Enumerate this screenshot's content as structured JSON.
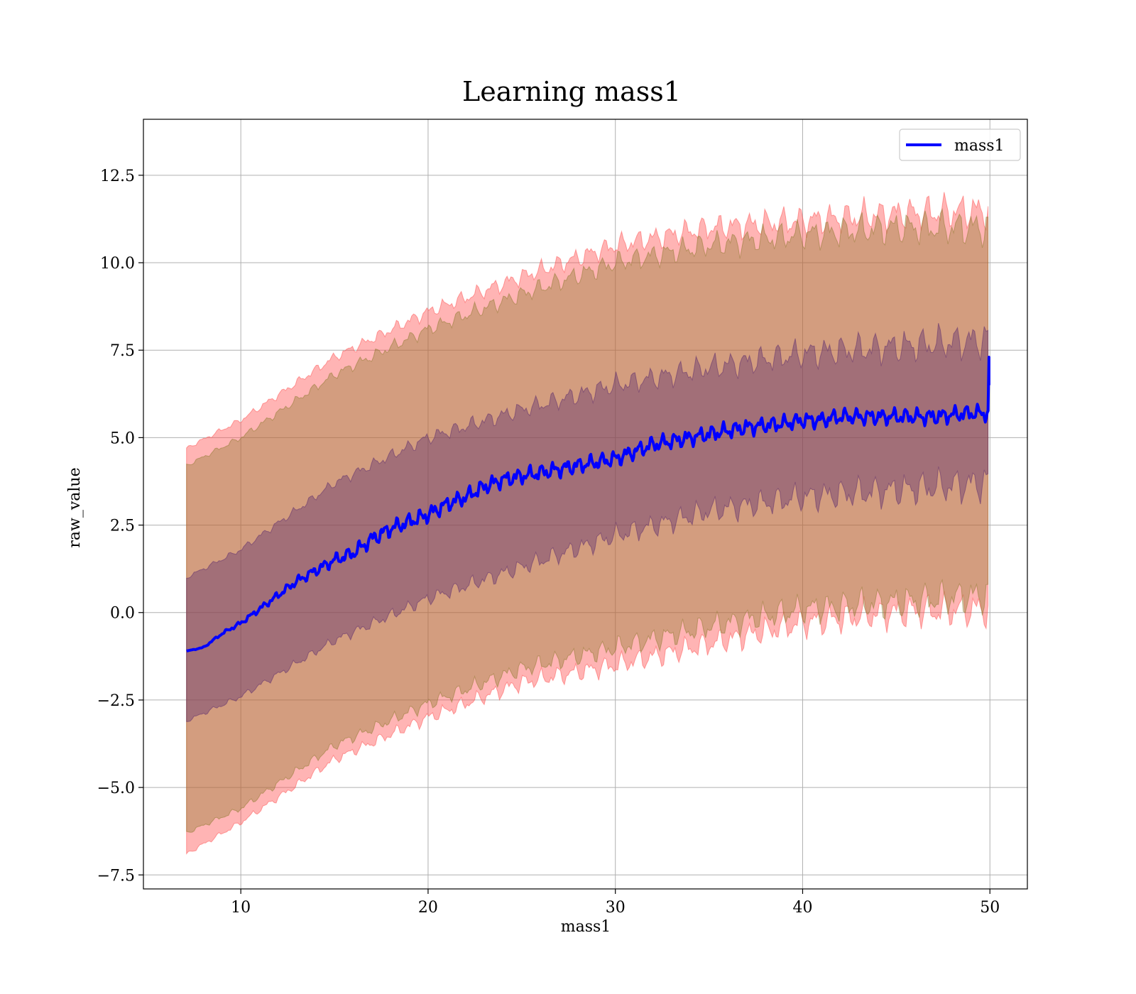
{
  "chart_data": {
    "type": "line",
    "title": "Learning mass1",
    "xlabel": "mass1",
    "ylabel": "raw_value",
    "xlim": [
      4.8,
      52.0
    ],
    "ylim": [
      -7.9,
      14.1
    ],
    "x_ticks": [
      10,
      20,
      30,
      40,
      50
    ],
    "x_tick_labels": [
      "10",
      "20",
      "30",
      "40",
      "50"
    ],
    "y_ticks": [
      -7.5,
      -5.0,
      -2.5,
      0.0,
      2.5,
      5.0,
      7.5,
      10.0,
      12.5
    ],
    "y_tick_labels": [
      "−7.5",
      "−5.0",
      "−2.5",
      "0.0",
      "2.5",
      "5.0",
      "7.5",
      "10.0",
      "12.5"
    ],
    "grid": true,
    "legend": {
      "position": "top-right",
      "entries": [
        {
          "label": "mass1",
          "color": "#0000ff"
        }
      ]
    },
    "colors": {
      "line": "#0000ff",
      "band_outer": "#ff4d4d",
      "band_middle": "#8b7a2b",
      "band_inner": "#5a2a6e"
    },
    "series": [
      {
        "name": "mass1",
        "x": [
          7.1,
          8,
          9,
          10,
          11,
          12,
          13,
          14,
          15,
          16,
          17,
          18,
          19,
          20,
          21,
          22,
          23,
          24,
          25,
          26,
          27,
          28,
          29,
          30,
          31,
          32,
          33,
          34,
          35,
          36,
          37,
          38,
          39,
          40,
          41,
          42,
          43,
          44,
          45,
          46,
          47,
          48,
          49,
          49.9
        ],
        "y": [
          -1.1,
          -1.0,
          -0.6,
          -0.3,
          0.1,
          0.5,
          0.9,
          1.2,
          1.5,
          1.7,
          2.1,
          2.4,
          2.6,
          2.8,
          3.1,
          3.3,
          3.6,
          3.8,
          3.9,
          4.0,
          4.1,
          4.2,
          4.3,
          4.4,
          4.6,
          4.8,
          4.9,
          5.0,
          5.1,
          5.2,
          5.3,
          5.35,
          5.4,
          5.5,
          5.5,
          5.6,
          5.6,
          5.6,
          5.6,
          5.6,
          5.6,
          5.65,
          5.7,
          5.7
        ],
        "end_spike": [
          49.95,
          7.3
        ]
      }
    ],
    "bands": [
      {
        "name": "outer",
        "x": [
          7.1,
          10,
          15,
          20,
          25,
          30,
          35,
          40,
          45,
          49.9
        ],
        "lower": [
          -6.9,
          -6.0,
          -4.2,
          -3.0,
          -2.0,
          -1.5,
          -0.9,
          -0.3,
          0.0,
          0.1
        ],
        "upper": [
          4.7,
          5.5,
          7.3,
          8.6,
          9.6,
          10.5,
          11.0,
          11.2,
          11.4,
          11.5
        ]
      },
      {
        "name": "middle",
        "x": [
          7.1,
          10,
          15,
          20,
          25,
          30,
          35,
          40,
          45,
          49.9
        ],
        "lower": [
          -6.3,
          -5.6,
          -3.8,
          -2.6,
          -1.6,
          -1.0,
          -0.4,
          0.1,
          0.3,
          0.5
        ],
        "upper": [
          4.2,
          5.0,
          6.8,
          8.1,
          9.1,
          10.0,
          10.5,
          10.8,
          11.0,
          11.0
        ]
      },
      {
        "name": "inner",
        "x": [
          7.1,
          10,
          15,
          20,
          25,
          30,
          35,
          40,
          45,
          49.9
        ],
        "lower": [
          -3.1,
          -2.4,
          -0.8,
          0.4,
          1.3,
          2.2,
          2.9,
          3.3,
          3.5,
          3.7
        ],
        "upper": [
          1.0,
          1.8,
          3.7,
          5.0,
          5.8,
          6.5,
          7.0,
          7.4,
          7.6,
          7.8
        ]
      }
    ]
  }
}
